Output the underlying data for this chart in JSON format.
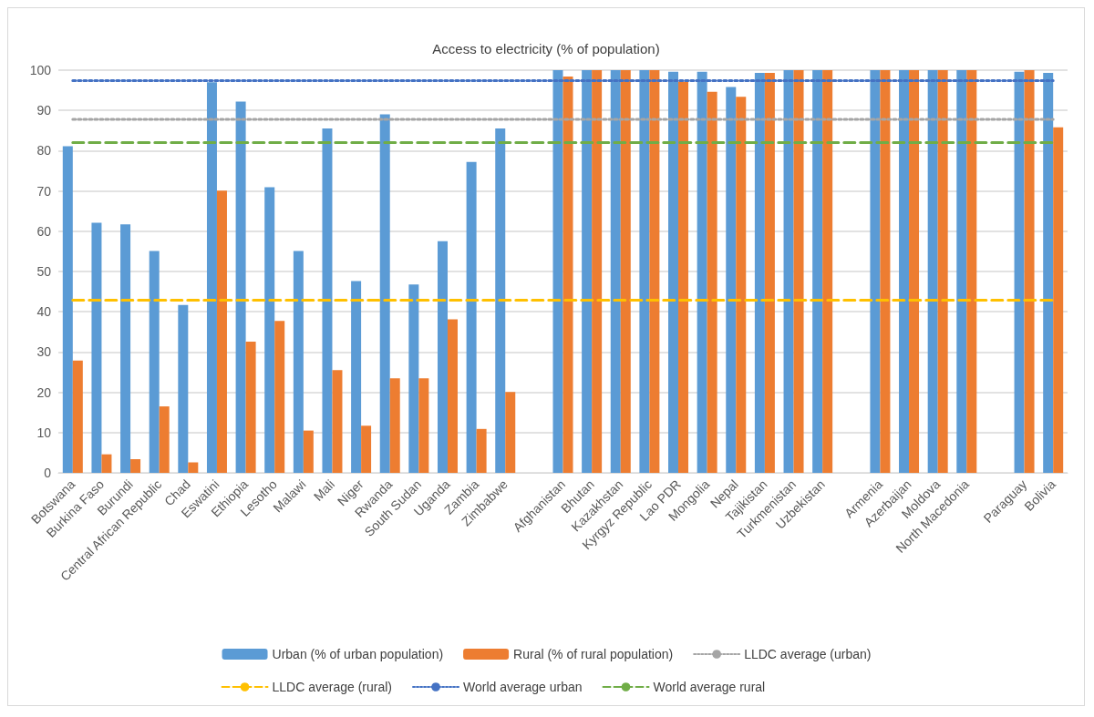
{
  "chart_data": {
    "type": "bar",
    "title": "Access to electricity (% of population)",
    "categories": [
      "Botswana",
      "Burkina Faso",
      "Burundi",
      "Central African Republic",
      "Chad",
      "Eswatini",
      "Ethiopia",
      "Lesotho",
      "Malawi",
      "Mali",
      "Niger",
      "Rwanda",
      "South Sudan",
      "Uganda",
      "Zambia",
      "Zimbabwe",
      null,
      "Afghanistan",
      "Bhutan",
      "Kazakhstan",
      "Kyrgyz Republic",
      "Lao PDR",
      "Mongolia",
      "Nepal",
      "Tajikistan",
      "Turkmenistan",
      "Uzbekistan",
      null,
      "Armenia",
      "Azerbaijan",
      "Moldova",
      "North Macedonia",
      null,
      "Paraguay",
      "Bolivia"
    ],
    "series": [
      {
        "name": "Urban (% of urban population)",
        "color": "#5b9bd5",
        "values": [
          81.1,
          62.1,
          61.7,
          55.1,
          41.7,
          97,
          92.2,
          70.9,
          55.1,
          85.5,
          47.6,
          89,
          46.8,
          57.5,
          77.2,
          85.5,
          null,
          100,
          100,
          100,
          100,
          99.6,
          99.6,
          95.8,
          99.3,
          100,
          100,
          null,
          100,
          100,
          100,
          100,
          null,
          99.6,
          99.3
        ]
      },
      {
        "name": "Rural (% of rural population)",
        "color": "#ed7d31",
        "values": [
          27.9,
          4.6,
          3.4,
          16.5,
          2.6,
          70.1,
          32.6,
          37.7,
          10.5,
          25.5,
          11.7,
          23.5,
          23.5,
          38.1,
          10.9,
          20.1,
          null,
          98.4,
          100,
          100,
          100,
          97.2,
          94.6,
          93.4,
          99.3,
          100,
          100,
          null,
          100,
          100,
          100,
          100,
          null,
          100,
          85.8
        ]
      },
      {
        "name": "LLDC average (urban)",
        "type": "line",
        "line_style": "dotted",
        "color": "#a5a5a5",
        "values": [
          87.8,
          87.8,
          87.8,
          87.8,
          87.8,
          87.8,
          87.8,
          87.8,
          87.8,
          87.8,
          87.8,
          87.8,
          87.8,
          87.8,
          87.8,
          87.8,
          87.8,
          87.8,
          87.8,
          87.8,
          87.8,
          87.8,
          87.8,
          87.8,
          87.8,
          87.8,
          87.8,
          87.8,
          87.8,
          87.8,
          87.8,
          87.8,
          87.8,
          87.8,
          87.8
        ]
      },
      {
        "name": "LLDC average (rural)",
        "type": "line",
        "line_style": "dashed",
        "color": "#ffc000",
        "values": [
          42.9,
          42.9,
          42.9,
          42.9,
          42.9,
          42.9,
          42.9,
          42.9,
          42.9,
          42.9,
          42.9,
          42.9,
          42.9,
          42.9,
          42.9,
          42.9,
          42.9,
          42.9,
          42.9,
          42.9,
          42.9,
          42.9,
          42.9,
          42.9,
          42.9,
          42.9,
          42.9,
          42.9,
          42.9,
          42.9,
          42.9,
          42.9,
          42.9,
          42.9,
          42.9
        ]
      },
      {
        "name": "World average urban",
        "type": "line",
        "line_style": "dotted",
        "color": "#4472c4",
        "values": [
          97.4,
          97.4,
          97.4,
          97.4,
          97.4,
          97.4,
          97.4,
          97.4,
          97.4,
          97.4,
          97.4,
          97.4,
          97.4,
          97.4,
          97.4,
          97.4,
          97.4,
          97.4,
          97.4,
          97.4,
          97.4,
          97.4,
          97.4,
          97.4,
          97.4,
          97.4,
          97.4,
          97.4,
          97.4,
          97.4,
          97.4,
          97.4,
          97.4,
          97.4,
          97.4
        ]
      },
      {
        "name": "World average rural",
        "type": "line",
        "line_style": "dashed",
        "color": "#70ad47",
        "values": [
          82,
          82,
          82,
          82,
          82,
          82,
          82,
          82,
          82,
          82,
          82,
          82,
          82,
          82,
          82,
          82,
          82,
          82,
          82,
          82,
          82,
          82,
          82,
          82,
          82,
          82,
          82,
          82,
          82,
          82,
          82,
          82,
          82,
          82,
          82
        ]
      }
    ],
    "ylim": [
      0,
      100
    ],
    "yticks": [
      0,
      10,
      20,
      30,
      40,
      50,
      60,
      70,
      80,
      90,
      100
    ],
    "grid": "y",
    "legend": "bottom"
  }
}
